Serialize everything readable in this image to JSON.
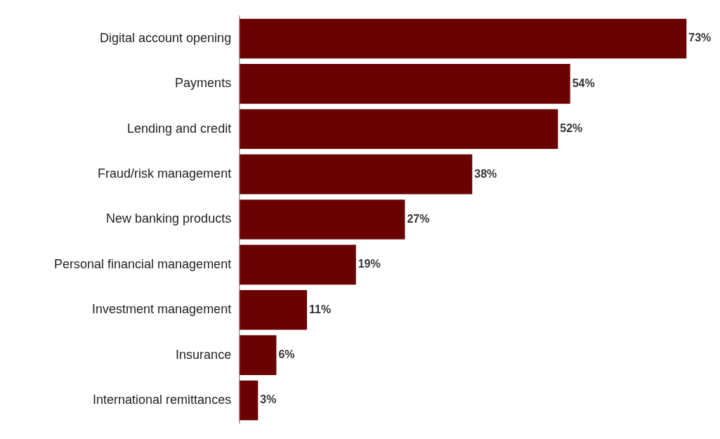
{
  "chart_data": {
    "type": "bar",
    "orientation": "horizontal",
    "categories": [
      "Digital account opening",
      "Payments",
      "Lending and credit",
      "Fraud/risk management",
      "New banking products",
      "Personal financial management",
      "Investment management",
      "Insurance",
      "International remittances"
    ],
    "values": [
      73,
      54,
      52,
      38,
      27,
      19,
      11,
      6,
      3
    ],
    "value_labels": [
      "73%",
      "54%",
      "52%",
      "38%",
      "27%",
      "19%",
      "11%",
      "6%",
      "3%"
    ],
    "color": "#6b0202"
  }
}
